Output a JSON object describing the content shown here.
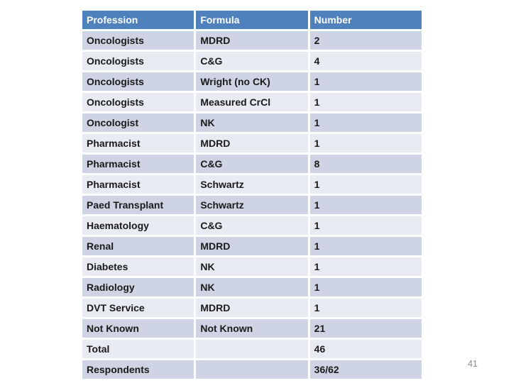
{
  "page": {
    "page_number": "41",
    "background": "#ffffff"
  },
  "table": {
    "columns": [
      "Profession",
      "Formula",
      "Number"
    ],
    "rows": [
      [
        "Oncologists",
        "MDRD",
        "2"
      ],
      [
        "Oncologists",
        "C&G",
        "4"
      ],
      [
        "Oncologists",
        "Wright (no CK)",
        "1"
      ],
      [
        "Oncologists",
        "Measured CrCl",
        "1"
      ],
      [
        "Oncologist",
        "NK",
        "1"
      ],
      [
        "Pharmacist",
        "MDRD",
        "1"
      ],
      [
        "Pharmacist",
        "C&G",
        "8"
      ],
      [
        "Pharmacist",
        "Schwartz",
        "1"
      ],
      [
        "Paed Transplant",
        "Schwartz",
        "1"
      ],
      [
        "Haematology",
        "C&G",
        "1"
      ],
      [
        "Renal",
        "MDRD",
        "1"
      ],
      [
        "Diabetes",
        "NK",
        "1"
      ],
      [
        "Radiology",
        "NK",
        "1"
      ],
      [
        "DVT Service",
        "MDRD",
        "1"
      ],
      [
        "Not Known",
        "Not Known",
        "21"
      ],
      [
        "Total",
        "",
        "46"
      ],
      [
        "Respondents",
        "",
        "36/62"
      ]
    ],
    "colors": {
      "header_bg": "#4f81bd",
      "header_text": "#ffffff",
      "band_dark": "#ced4e4",
      "band_light": "#e9ebf3",
      "divider": "#ffffff",
      "text": "#1a1a1a",
      "page_number": "#8a8a8a"
    }
  }
}
